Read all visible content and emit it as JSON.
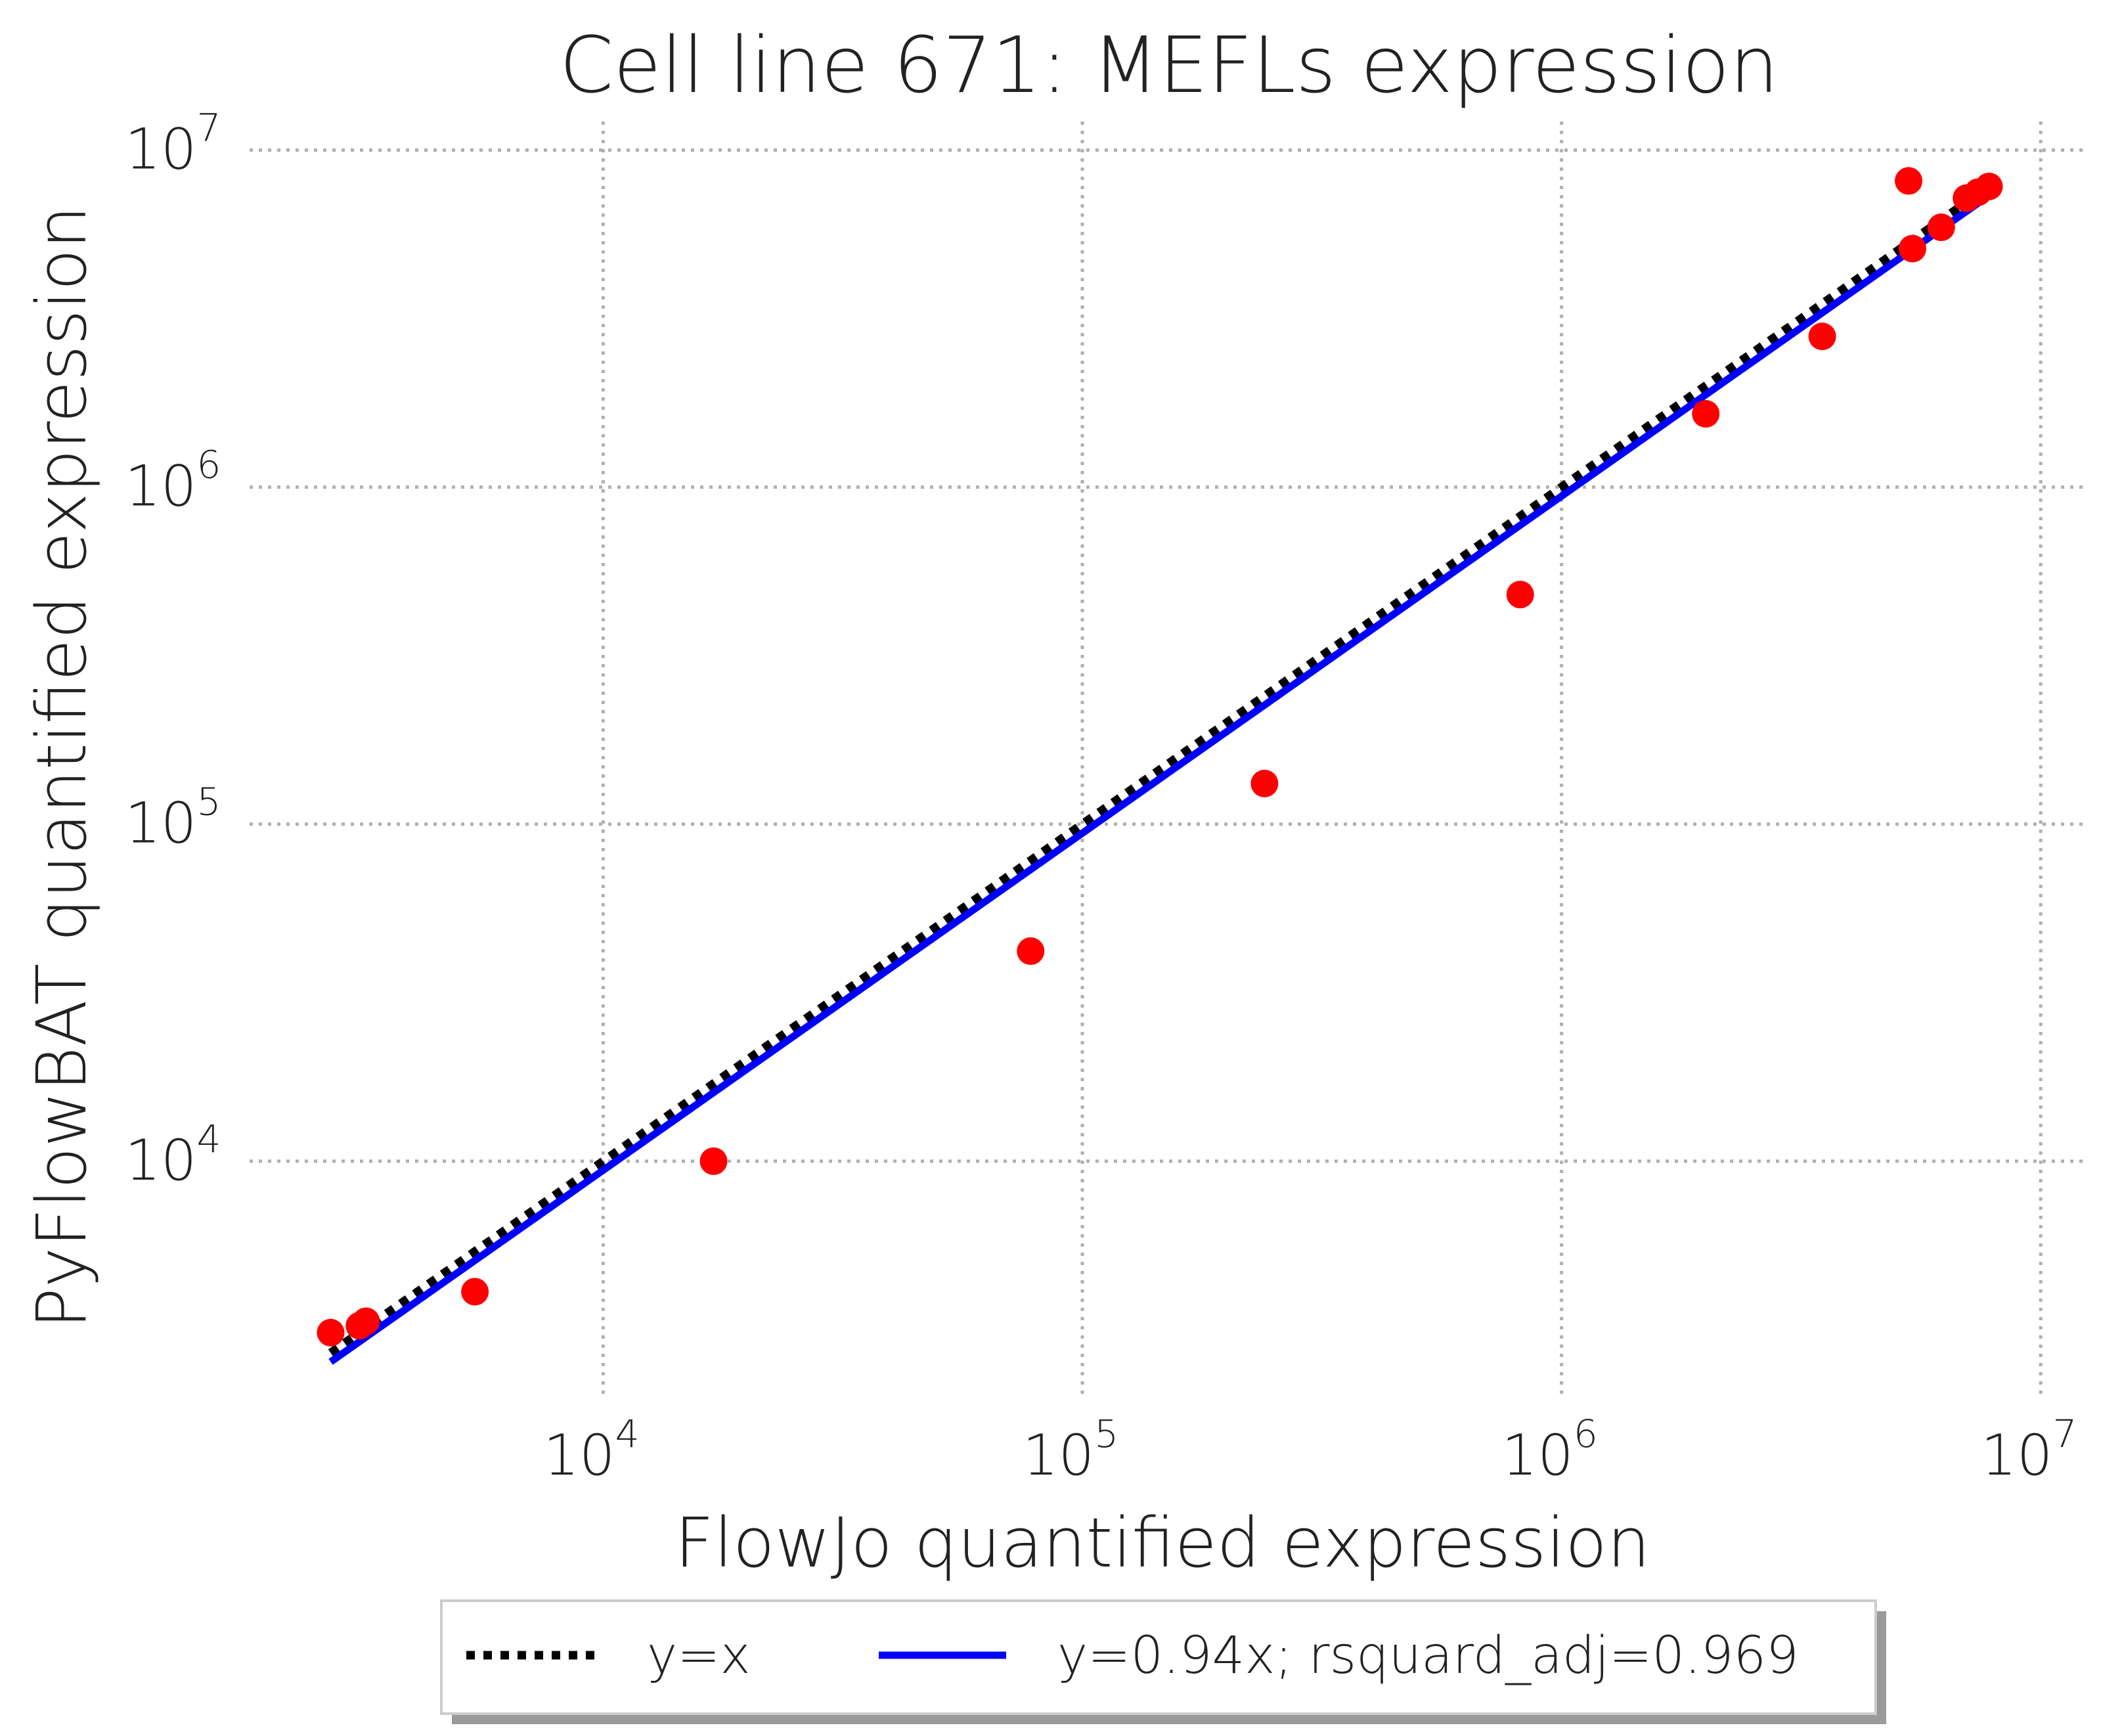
{
  "chart_data": {
    "type": "scatter",
    "title": "Cell line 671: MEFLs expression",
    "xlabel": "FlowJo quantified expression",
    "ylabel": "PyFlowBAT quantified expression",
    "xscale": "log",
    "yscale": "log",
    "xlim": [
      1800,
      12000000
    ],
    "ylim": [
      1800,
      13000000
    ],
    "grid": true,
    "x_ticks": [
      {
        "base": "10",
        "exp": "4",
        "value": 10000
      },
      {
        "base": "10",
        "exp": "5",
        "value": 100000
      },
      {
        "base": "10",
        "exp": "6",
        "value": 1000000
      },
      {
        "base": "10",
        "exp": "7",
        "value": 10000000
      }
    ],
    "y_ticks": [
      {
        "base": "10",
        "exp": "4",
        "value": 10000
      },
      {
        "base": "10",
        "exp": "5",
        "value": 100000
      },
      {
        "base": "10",
        "exp": "6",
        "value": 1000000
      },
      {
        "base": "10",
        "exp": "7",
        "value": 10000000
      }
    ],
    "points": {
      "color": "#ff0000",
      "x": [
        2700,
        3100,
        3200,
        5400,
        17000,
        78000,
        240000,
        820000,
        2000000,
        3500000,
        5300000,
        5400000,
        6200000,
        7000000,
        7400000,
        7800000
      ],
      "y": [
        3100,
        3250,
        3350,
        4100,
        10000,
        42000,
        132000,
        480000,
        1650000,
        2800000,
        8100000,
        5100000,
        5900000,
        7200000,
        7500000,
        7800000
      ]
    },
    "lines": [
      {
        "name": "y=x",
        "slope": 1.0,
        "color": "#000000",
        "style": "dotted"
      },
      {
        "name": "y=0.94x; rsquard_adj=0.969",
        "slope": 0.94,
        "color": "#0000ff",
        "style": "solid"
      }
    ],
    "line_x_range": [
      2700,
      7800000
    ],
    "legend_position": "bottom-center"
  }
}
